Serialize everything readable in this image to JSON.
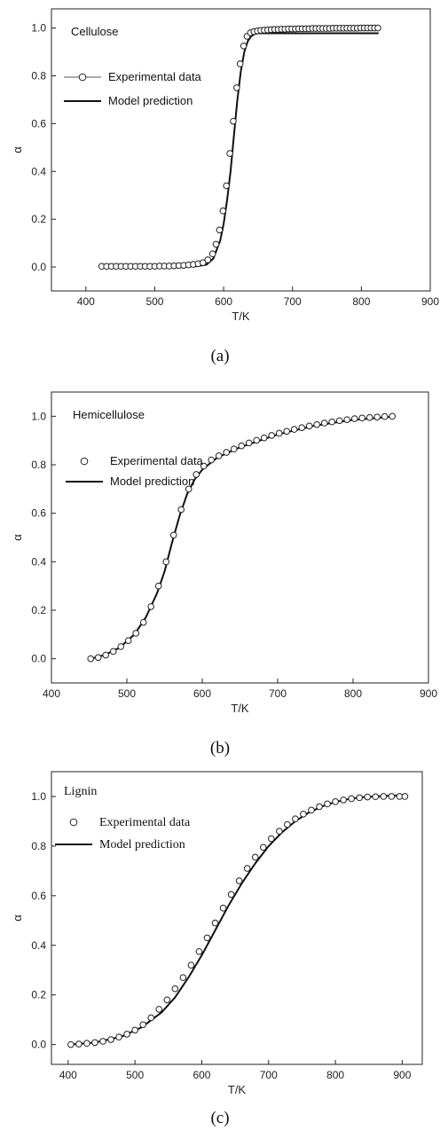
{
  "chart_data": [
    {
      "type": "line",
      "caption": "(a)",
      "annotation": "Cellulose",
      "xlabel": "T/K",
      "ylabel": "α",
      "xlim": [
        350,
        900
      ],
      "ylim": [
        -0.1,
        1.08
      ],
      "xticks": [
        "400",
        "500",
        "600",
        "700",
        "800",
        "900"
      ],
      "yticks": [
        "0.0",
        "0.2",
        "0.4",
        "0.6",
        "0.8",
        "1.0"
      ],
      "grid": false,
      "legend_position": "upper-left",
      "series": [
        {
          "name": "Experimental data",
          "style": "open-circles",
          "x": [
            423,
            430,
            437,
            444,
            451,
            458,
            465,
            472,
            479,
            486,
            493,
            500,
            507,
            514,
            521,
            528,
            535,
            542,
            549,
            556,
            563,
            570,
            577,
            584,
            589,
            594,
            599,
            604,
            609,
            614,
            619,
            624,
            629,
            634,
            639,
            644,
            649,
            654,
            659,
            664,
            669,
            674,
            679,
            684,
            689,
            694,
            699,
            704,
            709,
            714,
            719,
            724,
            729,
            734,
            739,
            744,
            749,
            754,
            759,
            764,
            769,
            774,
            779,
            784,
            789,
            794,
            799,
            804,
            809,
            814,
            819,
            824
          ],
          "y": [
            0.003,
            0.003,
            0.003,
            0.003,
            0.003,
            0.003,
            0.003,
            0.003,
            0.003,
            0.003,
            0.003,
            0.003,
            0.004,
            0.004,
            0.004,
            0.005,
            0.006,
            0.007,
            0.009,
            0.011,
            0.014,
            0.018,
            0.03,
            0.055,
            0.095,
            0.155,
            0.235,
            0.34,
            0.475,
            0.61,
            0.75,
            0.85,
            0.925,
            0.965,
            0.98,
            0.985,
            0.988,
            0.99,
            0.991,
            0.992,
            0.993,
            0.994,
            0.994,
            0.995,
            0.995,
            0.996,
            0.996,
            0.996,
            0.997,
            0.997,
            0.997,
            0.997,
            0.998,
            0.998,
            0.998,
            0.998,
            0.998,
            0.998,
            0.999,
            0.999,
            0.999,
            0.999,
            0.999,
            0.999,
            0.999,
            0.999,
            1.0,
            1.0,
            1.0,
            1.0,
            1.0,
            1.0
          ]
        },
        {
          "name": "Model prediction",
          "style": "solid-line",
          "x": [
            423,
            500,
            560,
            575,
            585,
            595,
            600,
            605,
            610,
            615,
            620,
            625,
            630,
            635,
            640,
            645,
            650,
            700,
            825
          ],
          "y": [
            0.0,
            0.0,
            0.003,
            0.01,
            0.035,
            0.11,
            0.18,
            0.28,
            0.4,
            0.55,
            0.7,
            0.82,
            0.9,
            0.945,
            0.965,
            0.975,
            0.978,
            0.978,
            0.978
          ]
        }
      ]
    },
    {
      "type": "line",
      "caption": "(b)",
      "annotation": "Hemicellulose",
      "xlabel": "T/K",
      "ylabel": "α",
      "xlim": [
        400,
        900
      ],
      "ylim": [
        -0.1,
        1.1
      ],
      "xticks": [
        "400",
        "500",
        "600",
        "700",
        "800",
        "900"
      ],
      "yticks": [
        "0.0",
        "0.2",
        "0.4",
        "0.6",
        "0.8",
        "1.0"
      ],
      "grid": false,
      "legend_position": "upper-left",
      "series": [
        {
          "name": "Experimental data",
          "style": "open-circles",
          "x": [
            452,
            462,
            472,
            482,
            492,
            502,
            512,
            522,
            532,
            542,
            552,
            562,
            572,
            582,
            592,
            602,
            612,
            622,
            632,
            642,
            652,
            662,
            672,
            682,
            692,
            702,
            712,
            722,
            732,
            742,
            752,
            762,
            772,
            782,
            792,
            802,
            812,
            822,
            832,
            842,
            852
          ],
          "y": [
            0.0,
            0.005,
            0.015,
            0.03,
            0.05,
            0.075,
            0.105,
            0.15,
            0.215,
            0.3,
            0.4,
            0.51,
            0.615,
            0.7,
            0.76,
            0.795,
            0.82,
            0.837,
            0.851,
            0.865,
            0.878,
            0.89,
            0.901,
            0.911,
            0.921,
            0.93,
            0.938,
            0.946,
            0.953,
            0.96,
            0.966,
            0.972,
            0.977,
            0.982,
            0.986,
            0.99,
            0.993,
            0.995,
            0.997,
            0.999,
            1.0
          ]
        },
        {
          "name": "Model prediction",
          "style": "solid-line",
          "x": [
            452,
            470,
            490,
            510,
            525,
            540,
            550,
            560,
            570,
            580,
            590,
            600,
            620,
            650,
            700,
            750,
            800,
            852
          ],
          "y": [
            0.0,
            0.015,
            0.045,
            0.1,
            0.17,
            0.27,
            0.36,
            0.48,
            0.59,
            0.68,
            0.74,
            0.78,
            0.83,
            0.872,
            0.925,
            0.962,
            0.985,
            0.998
          ]
        }
      ]
    },
    {
      "type": "line",
      "caption": "(c)",
      "annotation": "Lignin",
      "xlabel": "T/K",
      "ylabel": "α",
      "xlim": [
        375,
        930
      ],
      "ylim": [
        -0.08,
        1.1
      ],
      "xticks": [
        "400",
        "500",
        "600",
        "700",
        "800",
        "900"
      ],
      "yticks": [
        "0.0",
        "0.2",
        "0.4",
        "0.6",
        "0.8",
        "1.0"
      ],
      "grid": false,
      "legend_position": "upper-left",
      "series": [
        {
          "name": "Experimental data",
          "style": "open-circles",
          "x": [
            404,
            416,
            428,
            440,
            452,
            464,
            476,
            488,
            500,
            512,
            524,
            536,
            548,
            560,
            572,
            584,
            596,
            608,
            620,
            632,
            644,
            656,
            668,
            680,
            692,
            704,
            716,
            728,
            740,
            752,
            764,
            776,
            788,
            800,
            812,
            824,
            836,
            848,
            860,
            872,
            884,
            896,
            904
          ],
          "y": [
            0.0,
            0.002,
            0.005,
            0.008,
            0.013,
            0.02,
            0.03,
            0.042,
            0.058,
            0.08,
            0.108,
            0.142,
            0.18,
            0.225,
            0.27,
            0.32,
            0.375,
            0.43,
            0.49,
            0.55,
            0.605,
            0.66,
            0.71,
            0.755,
            0.795,
            0.83,
            0.86,
            0.887,
            0.91,
            0.929,
            0.945,
            0.959,
            0.97,
            0.979,
            0.986,
            0.991,
            0.995,
            0.998,
            0.999,
            1.0,
            1.0,
            1.0,
            1.0
          ]
        },
        {
          "name": "Model prediction",
          "style": "solid-line",
          "x": [
            404,
            440,
            480,
            510,
            540,
            560,
            580,
            600,
            620,
            640,
            660,
            680,
            700,
            720,
            740,
            760,
            780,
            800,
            820,
            840,
            860,
            880,
            904
          ],
          "y": [
            0.0,
            0.008,
            0.032,
            0.07,
            0.13,
            0.19,
            0.27,
            0.36,
            0.46,
            0.56,
            0.65,
            0.73,
            0.8,
            0.855,
            0.9,
            0.935,
            0.96,
            0.978,
            0.99,
            0.997,
            1.0,
            1.003,
            1.005
          ]
        }
      ]
    }
  ]
}
